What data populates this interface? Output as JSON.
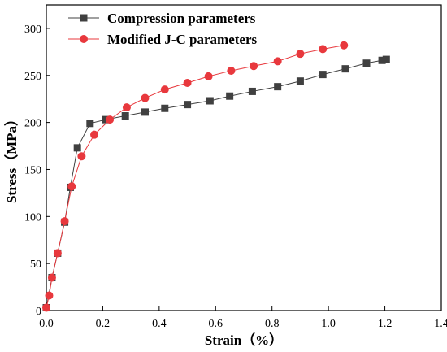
{
  "chart_data": {
    "type": "line",
    "xlabel": "Strain（%）",
    "ylabel": "Stress（MPa）",
    "xlim": [
      0.0,
      1.4
    ],
    "ylim": [
      0,
      325
    ],
    "xticks": [
      0.0,
      0.2,
      0.4,
      0.6,
      0.8,
      1.0,
      1.2,
      1.4
    ],
    "yticks": [
      0,
      50,
      100,
      150,
      200,
      250,
      300
    ],
    "xtick_labels": [
      "0.0",
      "0.2",
      "0.4",
      "0.6",
      "0.8",
      "1.0",
      "1.2",
      "1.4"
    ],
    "ytick_labels": [
      "0",
      "50",
      "100",
      "150",
      "200",
      "250",
      "300"
    ],
    "grid": false,
    "legend_position": "top-left",
    "series": [
      {
        "name": "Compression parameters",
        "color": "#404040",
        "marker": "square",
        "x": [
          0.0,
          0.02,
          0.04,
          0.065,
          0.085,
          0.11,
          0.155,
          0.21,
          0.28,
          0.35,
          0.42,
          0.5,
          0.58,
          0.65,
          0.73,
          0.82,
          0.9,
          0.98,
          1.06,
          1.135,
          1.19,
          1.205
        ],
        "y": [
          3,
          35,
          61,
          94,
          131,
          173,
          199,
          203,
          207,
          211,
          215,
          219,
          223,
          228,
          233,
          238,
          244,
          251,
          257,
          263,
          266,
          267
        ]
      },
      {
        "name": "Modified J-C parameters",
        "color": "#e8383d",
        "marker": "circle",
        "x": [
          0.0,
          0.01,
          0.02,
          0.04,
          0.065,
          0.09,
          0.125,
          0.17,
          0.225,
          0.285,
          0.35,
          0.42,
          0.5,
          0.575,
          0.655,
          0.735,
          0.82,
          0.9,
          0.98,
          1.055
        ],
        "y": [
          3,
          16,
          35,
          61,
          95,
          132,
          164,
          187,
          203,
          216,
          226,
          235,
          242,
          249,
          255,
          260,
          265,
          273,
          278,
          282
        ]
      }
    ]
  }
}
